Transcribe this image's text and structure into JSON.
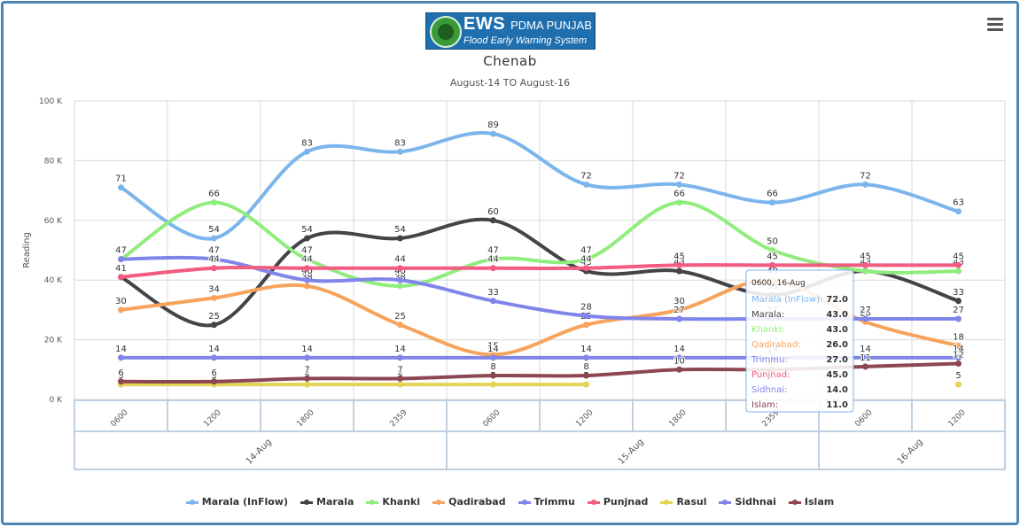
{
  "header": {
    "logo_text": "EWS",
    "logo_org": "PDMA PUNJAB",
    "logo_tagline": "Flood Early Warning System"
  },
  "menu_icon": "hamburger-menu-icon",
  "chart_data": {
    "type": "line",
    "title": "Chenab",
    "subtitle": "August-14 TO August-16",
    "ylabel": "Reading",
    "ylim": [
      0,
      100
    ],
    "y_ticks": [
      "0 K",
      "20 K",
      "40 K",
      "60 K",
      "80 K",
      "100 K"
    ],
    "categories": [
      "0600",
      "1200",
      "1800",
      "2359",
      "0600",
      "1200",
      "1800",
      "2359",
      "0600",
      "1200"
    ],
    "groups": [
      {
        "label": "14-Aug",
        "span": 4
      },
      {
        "label": "15-Aug",
        "span": 4
      },
      {
        "label": "16-Aug",
        "span": 2
      }
    ],
    "legend_position": "bottom",
    "series": [
      {
        "name": "Marala (InFlow)",
        "color": "#7cb5ec",
        "values": [
          71,
          54,
          83,
          83,
          89,
          72,
          72,
          66,
          72,
          63
        ]
      },
      {
        "name": "Marala",
        "color": "#434348",
        "values": [
          41,
          25,
          54,
          54,
          60,
          43,
          43,
          35,
          43,
          33
        ]
      },
      {
        "name": "Khanki",
        "color": "#90ed7d",
        "values": [
          47,
          66,
          47,
          38,
          47,
          47,
          66,
          50,
          43,
          43
        ]
      },
      {
        "name": "Qadirabad",
        "color": "#f7a35c",
        "values": [
          30,
          34,
          38,
          25,
          15,
          25,
          30,
          40,
          26,
          18
        ]
      },
      {
        "name": "Trimmu",
        "color": "#8085e9",
        "values": [
          47,
          47,
          40,
          40,
          33,
          28,
          27,
          27,
          27,
          27
        ]
      },
      {
        "name": "Punjnad",
        "color": "#f15c80",
        "values": [
          41,
          44,
          44,
          44,
          44,
          44,
          45,
          45,
          45,
          45
        ]
      },
      {
        "name": "Rasul",
        "color": "#e4d354",
        "values": [
          5,
          5,
          5,
          5,
          5,
          5,
          null,
          null,
          null,
          5
        ]
      },
      {
        "name": "Sidhnai",
        "color": "#8085e8",
        "values": [
          14,
          14,
          14,
          14,
          14,
          14,
          14,
          14,
          14,
          14
        ]
      },
      {
        "name": "Islam",
        "color": "#8d4653",
        "values": [
          6,
          6,
          7,
          7,
          8,
          8,
          10,
          10,
          11,
          12
        ]
      }
    ],
    "tooltip": {
      "header": "0600, 16-Aug",
      "rows": [
        {
          "name": "Marala (InFlow)",
          "value": "72.0",
          "color": "#7cb5ec"
        },
        {
          "name": "Marala",
          "value": "43.0",
          "color": "#434348"
        },
        {
          "name": "Khanki",
          "value": "43.0",
          "color": "#90ed7d"
        },
        {
          "name": "Qadirabad",
          "value": "26.0",
          "color": "#f7a35c"
        },
        {
          "name": "Trimmu",
          "value": "27.0",
          "color": "#8085e9"
        },
        {
          "name": "Punjnad",
          "value": "45.0",
          "color": "#f15c80"
        },
        {
          "name": "Sidhnai",
          "value": "14.0",
          "color": "#8085e8"
        },
        {
          "name": "Islam",
          "value": "11.0",
          "color": "#8d4653"
        }
      ]
    }
  }
}
